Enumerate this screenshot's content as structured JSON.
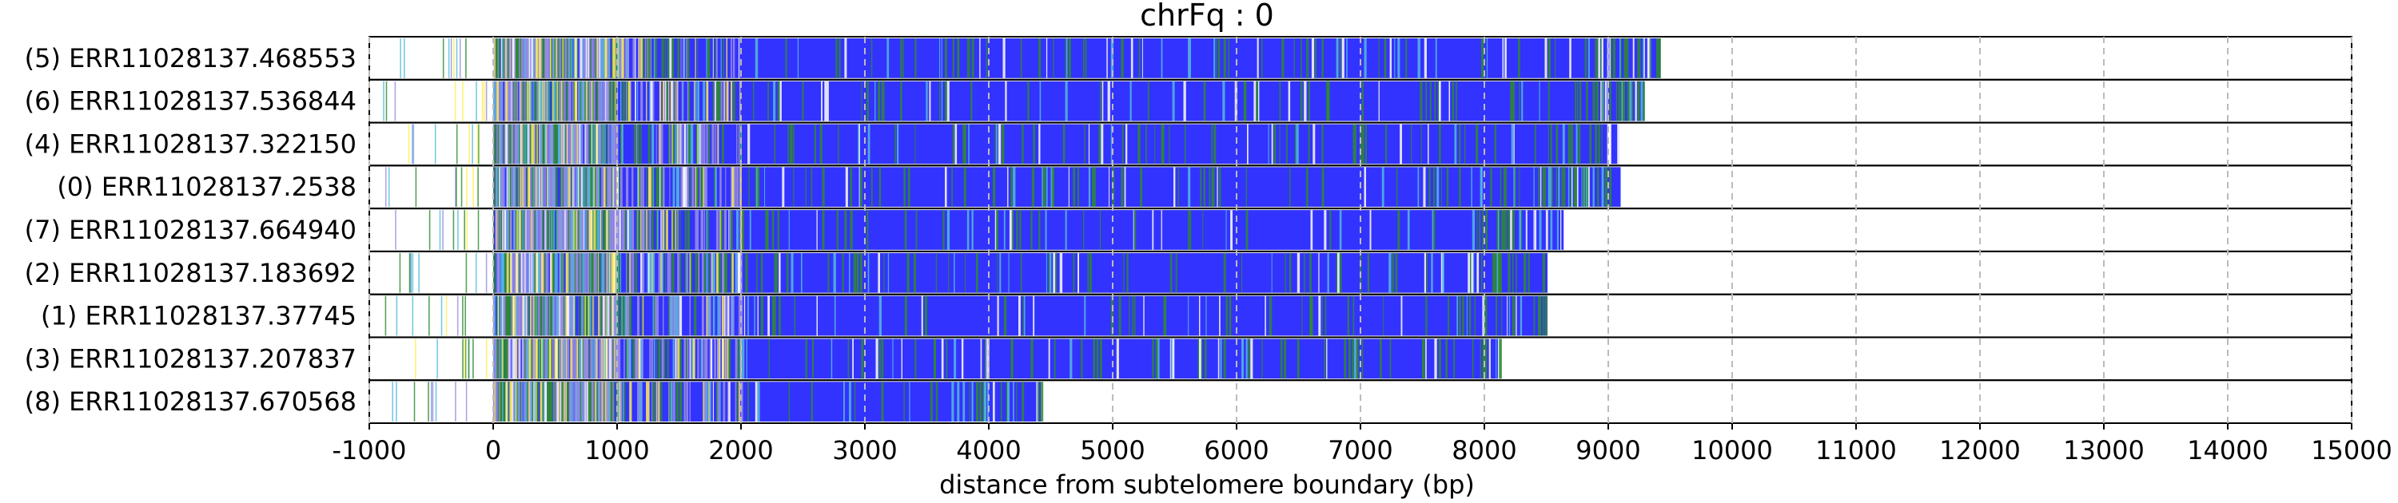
{
  "chart_data": {
    "type": "bar",
    "title": "chrFq : 0",
    "xlabel": "distance from subtelomere boundary (bp)",
    "ylabel": "",
    "xlim": [
      -1000,
      15000
    ],
    "xticks": [
      -1000,
      0,
      1000,
      2000,
      3000,
      4000,
      5000,
      6000,
      7000,
      8000,
      9000,
      10000,
      11000,
      12000,
      13000,
      14000,
      15000
    ],
    "xtick_labels": [
      "-1000",
      "0",
      "1000",
      "2000",
      "3000",
      "4000",
      "5000",
      "6000",
      "7000",
      "8000",
      "9000",
      "10000",
      "11000",
      "12000",
      "13000",
      "14000",
      "15000"
    ],
    "grid": "x-dashed",
    "categories": [
      "(5) ERR11028137.468553",
      "(6) ERR11028137.536844",
      "(4) ERR11028137.322150",
      "(0) ERR11028137.2538",
      "(7) ERR11028137.664940",
      "(2) ERR11028137.183692",
      "(1) ERR11028137.37745",
      "(3) ERR11028137.207837",
      "(8) ERR11028137.670568"
    ],
    "values": [
      9420,
      9290,
      9090,
      9100,
      8640,
      8510,
      8510,
      8130,
      4420
    ],
    "colors": {
      "main": "#3333ff",
      "green": "#2e8b2e",
      "purple": "#9a8fe0",
      "yellow": "#ffee55",
      "white": "#ffffff",
      "cyan": "#55bbdd",
      "grid": "#bbbbbb",
      "frame": "#000000"
    }
  }
}
